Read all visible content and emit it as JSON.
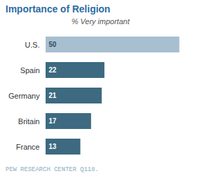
{
  "chart_data": {
    "type": "bar",
    "orientation": "horizontal",
    "title": "Importance of Religion",
    "subtitle": "% Very important",
    "annotations": [
      "PEW RESEARCH CENTER Q118."
    ],
    "categories": [
      "U.S.",
      "Spain",
      "Germany",
      "Britain",
      "France"
    ],
    "values": [
      50,
      22,
      21,
      17,
      13
    ],
    "colors": [
      "#a8bfd0",
      "#3d6a80",
      "#3d6a80",
      "#3d6a80",
      "#3d6a80"
    ],
    "xlim": [
      0,
      55
    ],
    "data_labels": true,
    "tick_labels": "y",
    "grid": false
  }
}
